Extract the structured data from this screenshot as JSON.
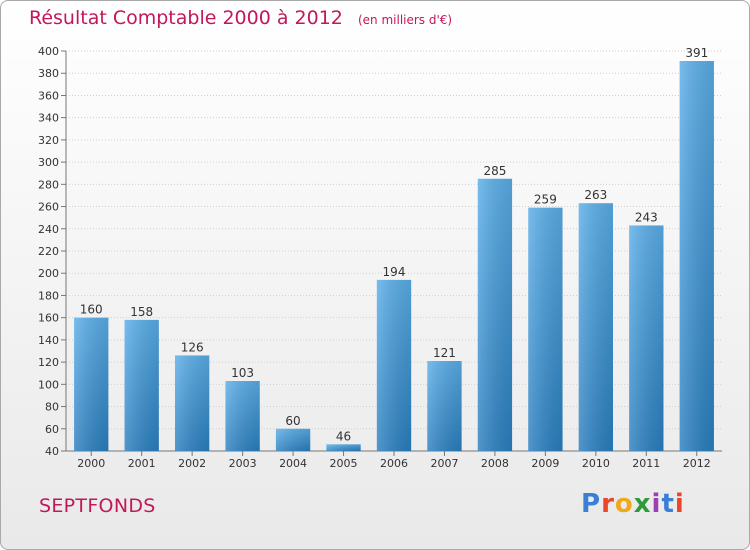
{
  "header": {
    "title": "Résultat Comptable 2000 à 2012",
    "subtitle": "(en milliers d'€)"
  },
  "footer": {
    "commune": "SEPTFONDS",
    "logo_text": "Proxiti"
  },
  "colors": {
    "title": "#c2185b",
    "bar_top": "#5aaee8",
    "bar_bottom": "#2a7fc0",
    "grid": "#d0d0d0",
    "logo_letters": [
      "#3a7fd5",
      "#e8472b",
      "#f2a81d",
      "#2e9a3c",
      "#9c3fb5",
      "#3a7fd5",
      "#e8472b"
    ]
  },
  "chart_data": {
    "type": "bar",
    "categories": [
      "2000",
      "2001",
      "2002",
      "2003",
      "2004",
      "2005",
      "2006",
      "2007",
      "2008",
      "2009",
      "2010",
      "2011",
      "2012"
    ],
    "values": [
      160,
      158,
      126,
      103,
      60,
      46,
      194,
      121,
      285,
      259,
      263,
      243,
      391
    ],
    "title": "Résultat Comptable 2000 à 2012",
    "subtitle": "(en milliers d'€)",
    "xlabel": "",
    "ylabel": "",
    "ylim": [
      40,
      400
    ],
    "yticks": [
      40,
      60,
      80,
      100,
      120,
      140,
      160,
      180,
      200,
      220,
      240,
      260,
      280,
      300,
      320,
      340,
      360,
      380,
      400
    ],
    "grid": true
  }
}
